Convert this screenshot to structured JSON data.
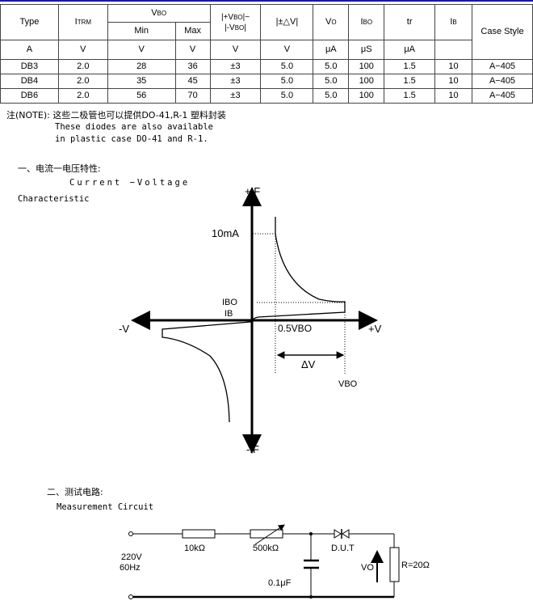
{
  "table": {
    "headers": {
      "type": "Type",
      "itrm": "I",
      "itrm_sub": "TRM",
      "vbo": "V",
      "vbo_sub": "BO",
      "min": "Min",
      "max": "Max",
      "diff_a": "|+V",
      "diff_b": "BO",
      "diff_c": "|−",
      "diff_d": "|-V",
      "diff_e": "BO",
      "diff_f": "|",
      "delta_v": "|±△V|",
      "vo": "V",
      "vo_sub": "O",
      "ibo": "I",
      "ibo_sub": "BO",
      "tr": "tr",
      "ib": "I",
      "ib_sub": "B",
      "case": "Case Style"
    },
    "units": [
      "A",
      "V",
      "V",
      "V",
      "V",
      "V",
      "μA",
      "μS",
      "μA"
    ],
    "rows": [
      [
        "DB3",
        "2.0",
        "28",
        "36",
        "±3",
        "5.0",
        "5.0",
        "100",
        "1.5",
        "10",
        "A−405"
      ],
      [
        "DB4",
        "2.0",
        "35",
        "45",
        "±3",
        "5.0",
        "5.0",
        "100",
        "1.5",
        "10",
        "A−405"
      ],
      [
        "DB6",
        "2.0",
        "56",
        "70",
        "±3",
        "5.0",
        "5.0",
        "100",
        "1.5",
        "10",
        "A−405"
      ]
    ]
  },
  "note": {
    "cn": "注(NOTE): 这些二极管也可以提供DO-41,R-1 塑料封装",
    "en1": "These diodes are also available",
    "en2": "in plastic case DO-41 and R-1."
  },
  "iv": {
    "heading": "一、电流一电压特性:",
    "title1": "Current −Voltage",
    "title2": "Characteristic",
    "labels": {
      "pif": "+IF",
      "nif": "-IF",
      "pv": "+V",
      "nv": "-V",
      "ma": "10mA",
      "ibo": "IBO",
      "ib": "IB",
      "half": "0.5VBO",
      "dv": "ΔV",
      "vbo": "VBO"
    }
  },
  "circuit": {
    "heading": "二、测试电路:",
    "title": "Measurement  Circuit",
    "labels": {
      "src1": "220V",
      "src2": "60Hz",
      "r1": "10kΩ",
      "r2": "500kΩ",
      "dut": "D.U.T",
      "cap": "0.1μF",
      "vo": "VO",
      "rl": "R=20Ω"
    }
  }
}
